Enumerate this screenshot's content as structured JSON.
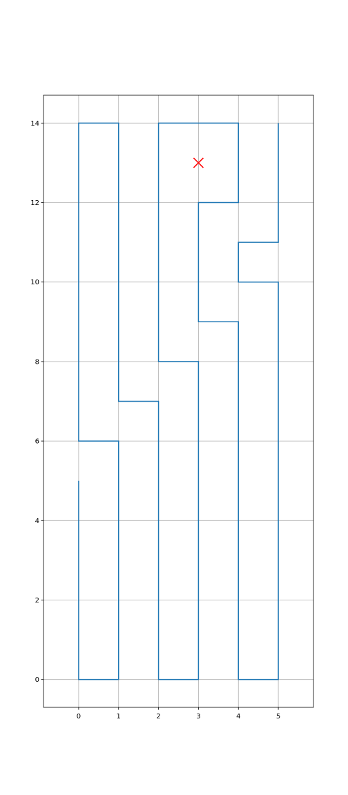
{
  "chart_data": {
    "type": "line",
    "title": "",
    "xlabel": "",
    "ylabel": "",
    "xlim": [
      -0.88,
      5.88
    ],
    "ylim": [
      -0.7,
      14.7
    ],
    "grid": true,
    "x_ticks": [
      0,
      1,
      2,
      3,
      4,
      5
    ],
    "y_ticks": [
      0,
      2,
      4,
      6,
      8,
      10,
      12,
      14
    ],
    "x_tick_labels": [
      "0",
      "1",
      "2",
      "3",
      "4",
      "5"
    ],
    "y_tick_labels": [
      "0",
      "2",
      "4",
      "6",
      "8",
      "10",
      "12",
      "14"
    ],
    "series": [
      {
        "color": "#1f77b4",
        "points": [
          [
            0,
            5
          ],
          [
            0,
            0
          ],
          [
            1,
            0
          ],
          [
            1,
            6
          ],
          [
            0,
            6
          ],
          [
            0,
            14
          ],
          [
            1,
            14
          ],
          [
            1,
            7
          ],
          [
            2,
            7
          ],
          [
            2,
            0
          ],
          [
            3,
            0
          ],
          [
            3,
            8
          ],
          [
            2,
            8
          ],
          [
            2,
            14
          ],
          [
            4,
            14
          ],
          [
            4,
            12
          ],
          [
            3,
            12
          ],
          [
            3,
            9
          ],
          [
            4,
            9
          ],
          [
            4,
            0
          ],
          [
            5,
            0
          ],
          [
            5,
            10
          ],
          [
            4,
            10
          ],
          [
            4,
            11
          ],
          [
            5,
            11
          ],
          [
            5,
            14
          ]
        ]
      }
    ],
    "markers": [
      {
        "x": 3,
        "y": 13,
        "marker": "x",
        "color": "#ff0000"
      }
    ]
  }
}
